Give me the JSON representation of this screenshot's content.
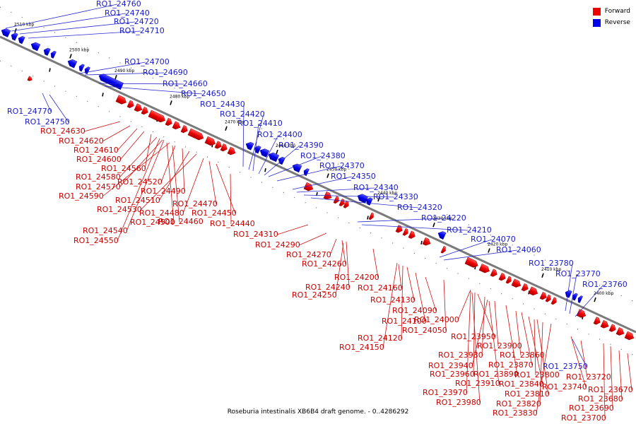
{
  "legend": [
    {
      "label": "Forward",
      "color": "#ee0000"
    },
    {
      "label": "Reverse",
      "color": "#0000ee"
    }
  ],
  "caption": "Roseburia intestinalis XB6B4 draft genome. - 0..4286292",
  "ticks": [
    "2510 kbp",
    "2500 kbp",
    "2490 kbp",
    "2480 kbp",
    "2470 kbp",
    "2460 kbp",
    "2450 kbp",
    "2440 kbp",
    "2430 kbp",
    "2420 kbp",
    "2410 kbp",
    "2400 kbp"
  ],
  "reverse_labels": [
    "RO1_24760",
    "RO1_24740",
    "RO1_24720",
    "RO1_24710",
    "RO1_24700",
    "RO1_24690",
    "RO1_24660",
    "RO1_24650",
    "RO1_24770",
    "RO1_24750",
    "RO1_24430",
    "RO1_24420",
    "RO1_24410",
    "RO1_24400",
    "RO1_24390",
    "RO1_24380",
    "RO1_24370",
    "RO1_24350",
    "RO1_24340",
    "RO1_24330",
    "RO1_24320",
    "RO1_24220",
    "RO1_24210",
    "RO1_24070",
    "RO1_24060",
    "RO1_23780",
    "RO1_23770",
    "RO1_23760",
    "RO1_23750"
  ],
  "forward_labels": [
    "RO1_24630",
    "RO1_24620",
    "RO1_24610",
    "RO1_24600",
    "RO1_24560",
    "RO1_24580",
    "RO1_24570",
    "RO1_24590",
    "RO1_24520",
    "RO1_24490",
    "RO1_24510",
    "RO1_24530",
    "RO1_24480",
    "RO1_24470",
    "RO1_24450",
    "RO1_24500",
    "RO1_24460",
    "RO1_24440",
    "RO1_24540",
    "RO1_24550",
    "RO1_24310",
    "RO1_24290",
    "RO1_24270",
    "RO1_24260",
    "RO1_24200",
    "RO1_24240",
    "RO1_24160",
    "RO1_24250",
    "RO1_24130",
    "RO1_24090",
    "RO1_24100",
    "RO1_24050",
    "RO1_24000",
    "RO1_24120",
    "RO1_24150",
    "RO1_23950",
    "RO1_23900",
    "RO1_23930",
    "RO1_23860",
    "RO1_23940",
    "RO1_23870",
    "RO1_23960",
    "RO1_23890",
    "RO1_23800",
    "RO1_23910",
    "RO1_23840",
    "RO1_23720",
    "RO1_23740",
    "RO1_23970",
    "RO1_23810",
    "RO1_23670",
    "RO1_23980",
    "RO1_23820",
    "RO1_23680",
    "RO1_23690",
    "RO1_23830",
    "RO1_23700"
  ]
}
